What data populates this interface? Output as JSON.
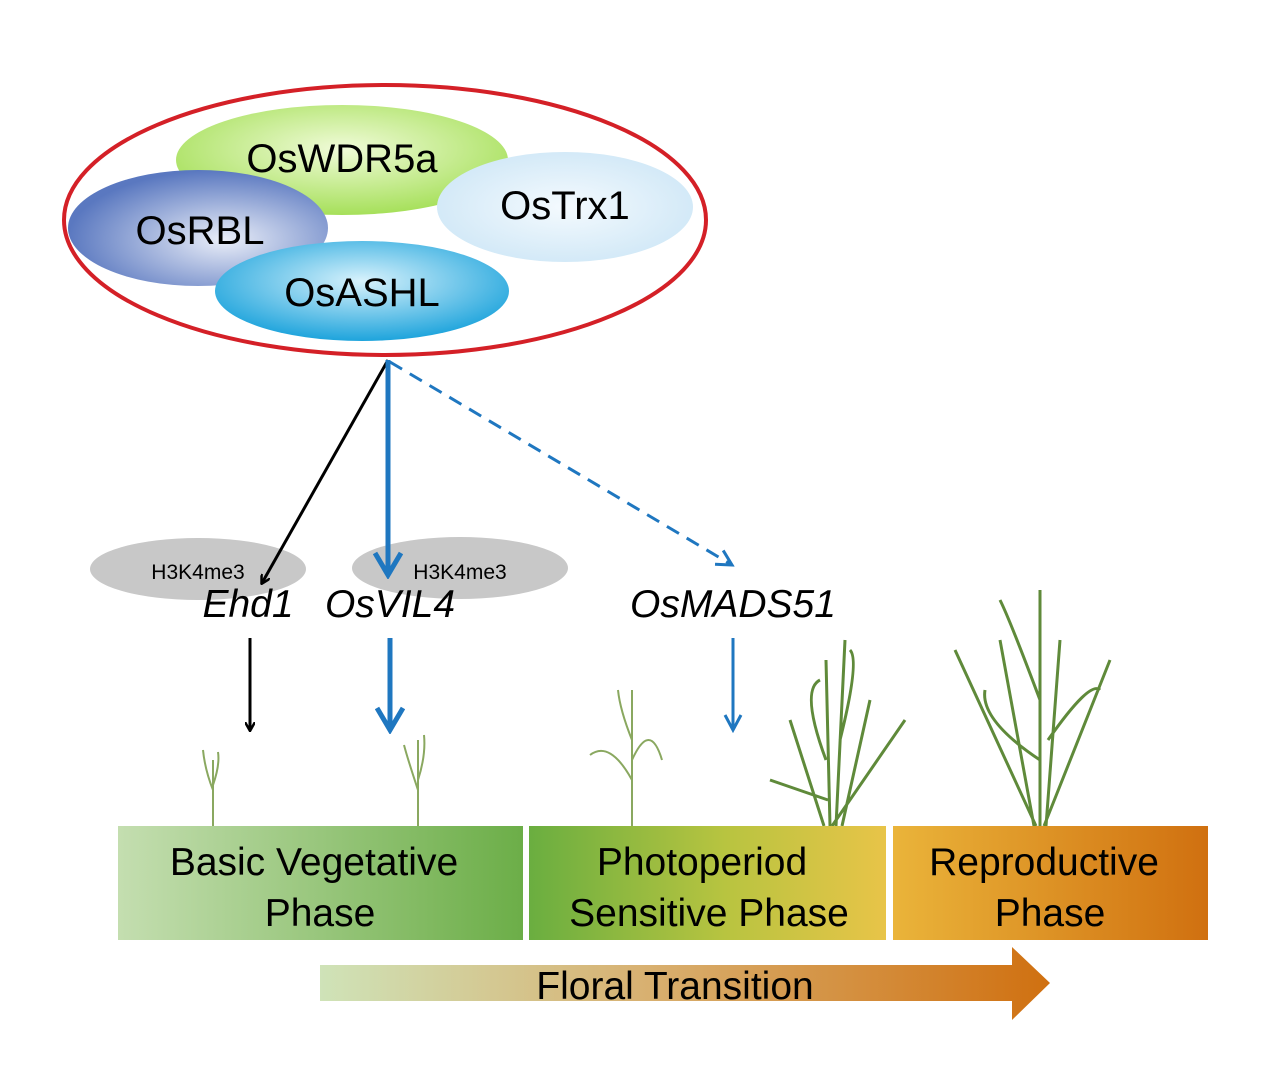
{
  "complex": {
    "proteins": [
      "OsWDR5a",
      "OsTrx1",
      "OsRBL",
      "OsASHL"
    ],
    "outline_color": "#d42027"
  },
  "marks": [
    "H3K4me3",
    "H3K4me3"
  ],
  "genes": [
    "Ehd1",
    "OsVIL4",
    "OsMADS51"
  ],
  "phases": [
    {
      "line1": "Basic Vegetative",
      "line2": "Phase"
    },
    {
      "line1": "Photoperiod",
      "line2": "Sensitive Phase"
    },
    {
      "line1": "Reproductive",
      "line2": "Phase"
    }
  ],
  "transition": "Floral Transition",
  "colors": {
    "arrow_blue": "#1f77c0",
    "arrow_black": "#000000",
    "mark_gray": "#c8c8c8"
  }
}
